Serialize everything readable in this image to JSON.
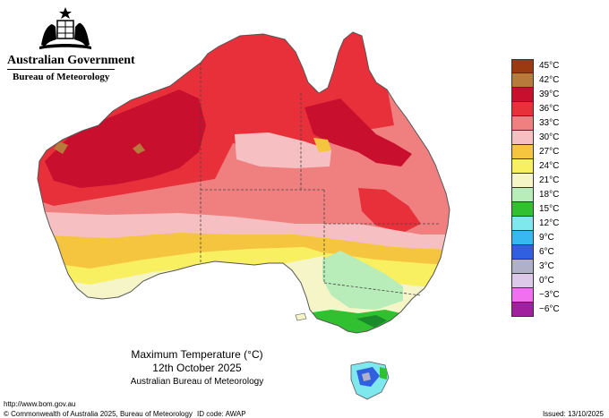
{
  "header": {
    "government": "Australian Government",
    "bureau": "Bureau of Meteorology",
    "crest_icon": "australian-coat-of-arms-icon"
  },
  "legend": {
    "items": [
      {
        "label": "45°C",
        "color": "#9b3a10"
      },
      {
        "label": "42°C",
        "color": "#b77a3a"
      },
      {
        "label": "39°C",
        "color": "#c8102e"
      },
      {
        "label": "36°C",
        "color": "#e8303a"
      },
      {
        "label": "33°C",
        "color": "#f08080"
      },
      {
        "label": "30°C",
        "color": "#f6c0c2"
      },
      {
        "label": "27°C",
        "color": "#f5c540"
      },
      {
        "label": "24°C",
        "color": "#f8f060"
      },
      {
        "label": "21°C",
        "color": "#f5f5c8"
      },
      {
        "label": "18°C",
        "color": "#b8ecb8"
      },
      {
        "label": "15°C",
        "color": "#30c030"
      },
      {
        "label": "12°C",
        "color": "#7fe8ee"
      },
      {
        "label": "9°C",
        "color": "#38b8f0"
      },
      {
        "label": "6°C",
        "color": "#3060e0"
      },
      {
        "label": "3°C",
        "color": "#b0b0c8"
      },
      {
        "label": "0°C",
        "color": "#dcc8e8"
      },
      {
        "label": "−3°C",
        "color": "#f070f0"
      },
      {
        "label": "−6°C",
        "color": "#a020a0"
      }
    ]
  },
  "caption": {
    "title": "Maximum Temperature (°C)",
    "date": "12th October 2025",
    "organisation": "Australian Bureau of Meteorology"
  },
  "footer": {
    "url": "http://www.bom.gov.au",
    "copyright": "© Commonwealth of Australia 2025, Bureau of Meteorology",
    "id_code": "ID code: AWAP",
    "issued": "Issued: 13/10/2025"
  }
}
